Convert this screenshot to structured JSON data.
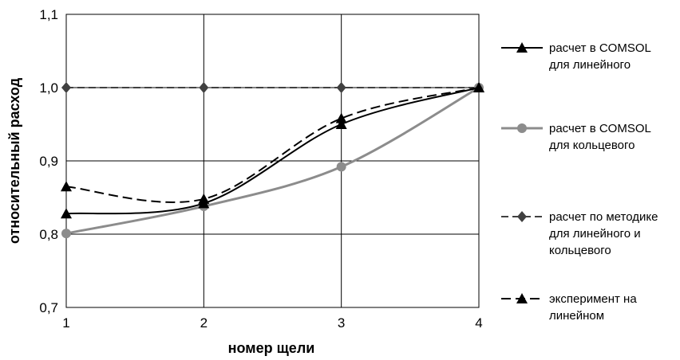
{
  "chart_data": {
    "type": "line",
    "xlabel": "номер щели",
    "ylabel": "относительный расход",
    "x": [
      1,
      2,
      3,
      4
    ],
    "xticks": [
      "1",
      "2",
      "3",
      "4"
    ],
    "ylim": [
      0.7,
      1.1
    ],
    "yticks": [
      "0,7",
      "0,8",
      "0,9",
      "1,0",
      "1,1"
    ],
    "grid": true,
    "legend_position": "right",
    "series": [
      {
        "name": "расчет в COMSOL для линейного",
        "name_lines": [
          "расчет в COMSOL",
          "для линейного"
        ],
        "values": [
          0.828,
          0.842,
          0.95,
          1.0
        ],
        "color": "#000000",
        "dash": "solid",
        "marker": "triangle"
      },
      {
        "name": "расчет в COMSOL для кольцевого",
        "name_lines": [
          "расчет в COMSOL",
          "для кольцевого"
        ],
        "values": [
          0.801,
          0.838,
          0.892,
          1.0
        ],
        "color": "#8c8c8c",
        "dash": "solid",
        "marker": "circle"
      },
      {
        "name": "расчет по методике для линейного и кольцевого",
        "name_lines": [
          "расчет по методике",
          "для линейного и",
          "кольцевого"
        ],
        "values": [
          1.0,
          1.0,
          1.0,
          1.0
        ],
        "color": "#404040",
        "dash": "dashed",
        "marker": "diamond"
      },
      {
        "name": "эксперимент на линейном",
        "name_lines": [
          "эксперимент на",
          "линейном"
        ],
        "values": [
          0.865,
          0.848,
          0.958,
          1.0
        ],
        "color": "#000000",
        "dash": "dashed",
        "marker": "triangle"
      }
    ]
  }
}
